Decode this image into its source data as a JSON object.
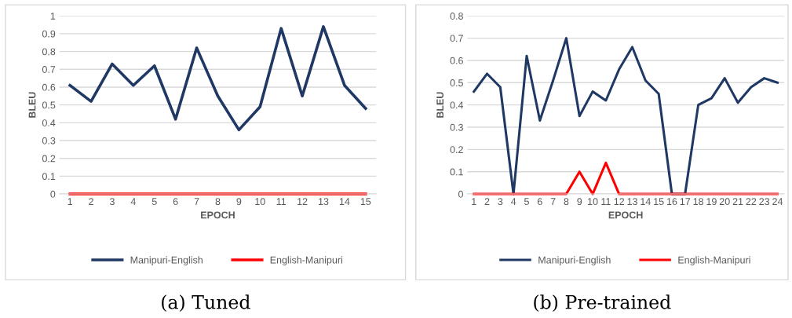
{
  "chart_data": [
    {
      "type": "line",
      "xlabel": "EPOCH",
      "ylabel": "BLEU",
      "categories": [
        "1",
        "2",
        "3",
        "4",
        "5",
        "6",
        "7",
        "8",
        "9",
        "10",
        "11",
        "12",
        "13",
        "14",
        "15"
      ],
      "series": [
        {
          "name": "Manipuri-English",
          "color": "#1f3864",
          "values": [
            0.61,
            0.52,
            0.73,
            0.61,
            0.72,
            0.42,
            0.82,
            0.55,
            0.36,
            0.49,
            0.93,
            0.55,
            0.94,
            0.61,
            0.48
          ]
        },
        {
          "name": "English-Manipuri",
          "color": "#ff0000",
          "values": [
            0,
            0,
            0,
            0,
            0,
            0,
            0,
            0,
            0,
            0,
            0,
            0,
            0,
            0,
            0
          ]
        }
      ],
      "ylim": [
        0,
        1
      ],
      "yticks": [
        0,
        0.1,
        0.2,
        0.3,
        0.4,
        0.5,
        0.6,
        0.7,
        0.8,
        0.9,
        1
      ],
      "grid": "y",
      "legend": "bottom",
      "annotations": [
        "(a) Tuned"
      ]
    },
    {
      "type": "line",
      "xlabel": "EPOCH",
      "ylabel": "BLEU",
      "categories": [
        "1",
        "2",
        "3",
        "4",
        "5",
        "6",
        "7",
        "8",
        "9",
        "10",
        "11",
        "12",
        "13",
        "14",
        "15",
        "16",
        "17",
        "18",
        "19",
        "20",
        "21",
        "22",
        "23",
        "24"
      ],
      "series": [
        {
          "name": "Manipuri-English",
          "color": "#1f3864",
          "values": [
            0.46,
            0.54,
            0.48,
            0,
            0.62,
            0.33,
            0.51,
            0.7,
            0.35,
            0.46,
            0.42,
            0.56,
            0.66,
            0.51,
            0.45,
            0,
            0,
            0.4,
            0.43,
            0.52,
            0.41,
            0.48,
            0.52,
            0.5
          ]
        },
        {
          "name": "English-Manipuri",
          "color": "#ff0000",
          "values": [
            0,
            0,
            0,
            0,
            0,
            0,
            0,
            0,
            0.1,
            0,
            0.14,
            0,
            0,
            0,
            0,
            0,
            0,
            0,
            0,
            0,
            0,
            0,
            0,
            0
          ]
        }
      ],
      "ylim": [
        0,
        0.8
      ],
      "yticks": [
        0,
        0.1,
        0.2,
        0.3,
        0.4,
        0.5,
        0.6,
        0.7,
        0.8
      ],
      "grid": "y",
      "legend": "bottom",
      "annotations": [
        "(b) Pre-trained"
      ]
    }
  ]
}
